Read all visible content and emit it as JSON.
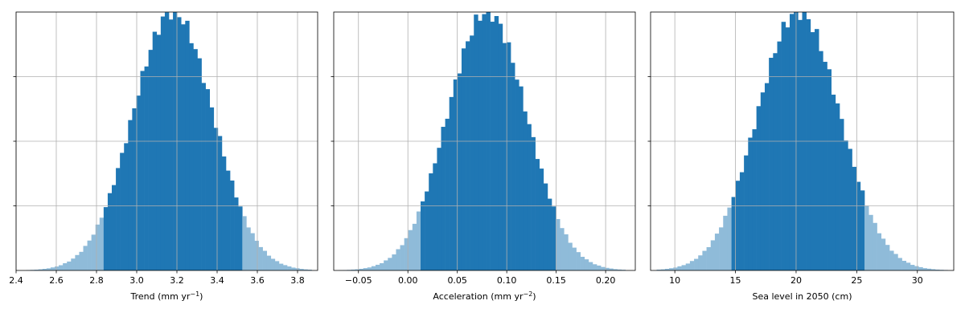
{
  "style": {
    "core_color": "#1f77b4",
    "tail_color": "#8fbbd9",
    "grid_color": "#b0b0b0",
    "axis_color": "#000000"
  },
  "chart_data": [
    {
      "type": "bar",
      "name": "trend",
      "xlabel": "Trend (mm yr",
      "xlabel_exp": "−1",
      "xlabel_close": ")",
      "xlim": [
        2.4,
        3.9
      ],
      "xticks": [
        2.4,
        2.6,
        2.8,
        3.0,
        3.2,
        3.4,
        3.6,
        3.8
      ],
      "xtick_labels": [
        "2.4",
        "2.6",
        "2.8",
        "3.0",
        "3.2",
        "3.4",
        "3.6",
        "3.8"
      ],
      "ylim": [
        0,
        1
      ],
      "grid": true,
      "histogram": {
        "center": 3.18,
        "sigma": 0.2,
        "range": [
          2.45,
          3.87
        ],
        "bins": 70,
        "core_range": [
          2.84,
          3.52
        ]
      }
    },
    {
      "type": "bar",
      "name": "acceleration",
      "xlabel": "Acceleration (mm yr",
      "xlabel_exp": "−2",
      "xlabel_close": ")",
      "xlim": [
        -0.075,
        0.23
      ],
      "xticks": [
        -0.05,
        0.0,
        0.05,
        0.1,
        0.15,
        0.2
      ],
      "xtick_labels": [
        "−0.05",
        "0.00",
        "0.05",
        "0.10",
        "0.15",
        "0.20"
      ],
      "ylim": [
        0,
        1
      ],
      "grid": true,
      "histogram": {
        "center": 0.08,
        "sigma": 0.04,
        "range": [
          -0.07,
          0.22
        ],
        "bins": 70,
        "core_range": [
          0.012,
          0.148
        ]
      }
    },
    {
      "type": "bar",
      "name": "sea-level-2050",
      "xlabel": "Sea level in 2050 (cm)",
      "xlabel_exp": "",
      "xlabel_close": "",
      "xlim": [
        8.0,
        33.0
      ],
      "xticks": [
        10,
        15,
        20,
        25,
        30
      ],
      "xtick_labels": [
        "10",
        "15",
        "20",
        "25",
        "30"
      ],
      "ylim": [
        0,
        1
      ],
      "grid": true,
      "histogram": {
        "center": 20.2,
        "sigma": 3.4,
        "range": [
          8.5,
          32.5
        ],
        "bins": 70,
        "core_range": [
          14.8,
          25.8
        ]
      }
    }
  ]
}
